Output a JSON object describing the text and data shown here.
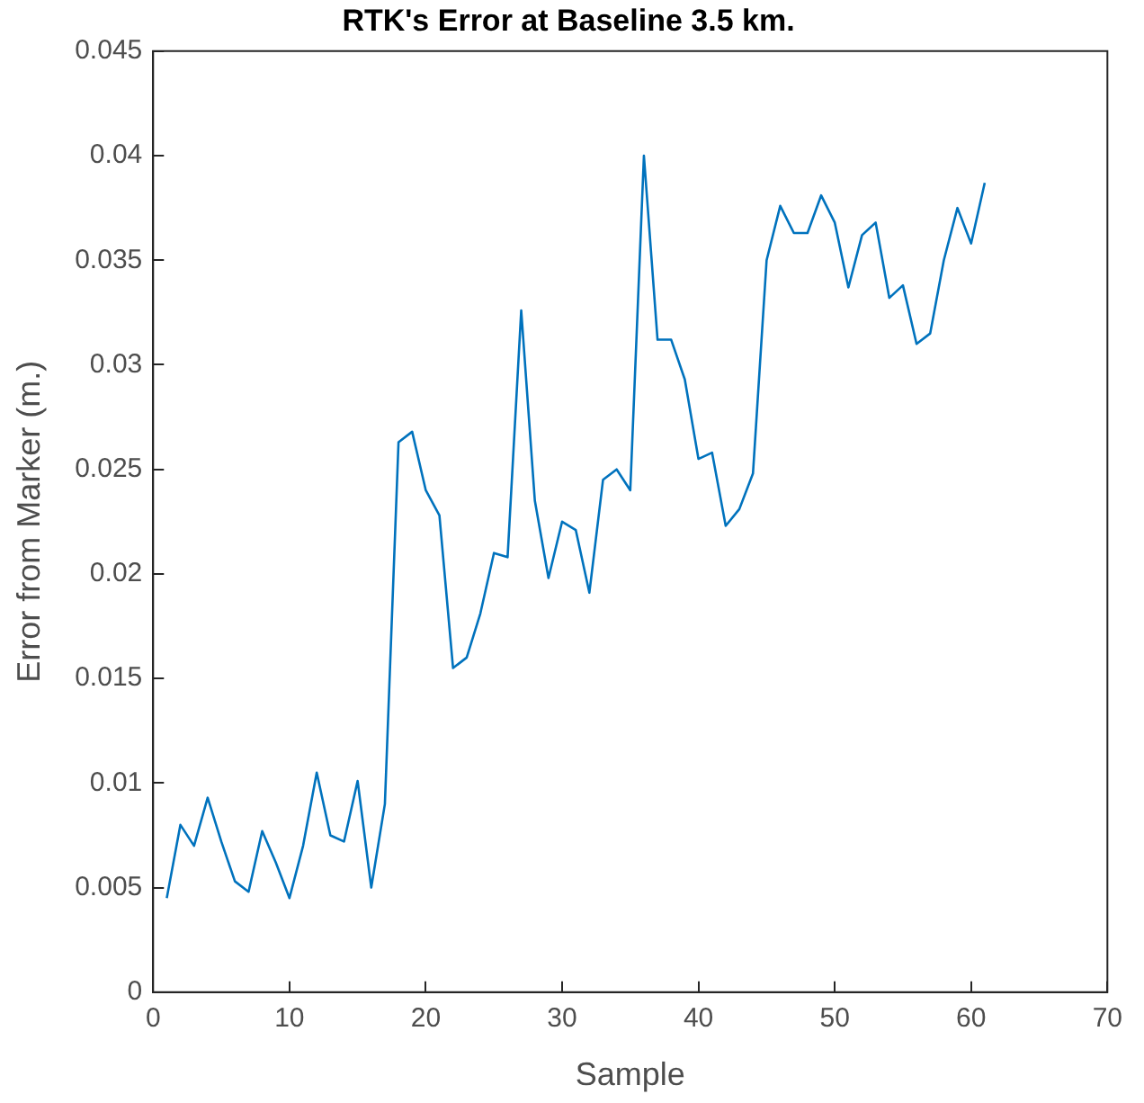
{
  "chart_data": {
    "type": "line",
    "title": "RTK's Error at Baseline 3.5 km.",
    "xlabel": "Sample",
    "ylabel": "Error from Marker (m.)",
    "x": [
      1,
      2,
      3,
      4,
      5,
      6,
      7,
      8,
      9,
      10,
      11,
      12,
      13,
      14,
      15,
      16,
      17,
      18,
      19,
      20,
      21,
      22,
      23,
      24,
      25,
      26,
      27,
      28,
      29,
      30,
      31,
      32,
      33,
      34,
      35,
      36,
      37,
      38,
      39,
      40,
      41,
      42,
      43,
      44,
      45,
      46,
      47,
      48,
      49,
      50,
      51,
      52,
      53,
      54,
      55,
      56,
      57,
      58,
      59,
      60,
      61
    ],
    "series": [
      {
        "color": "#0072bd",
        "values": [
          0.0045,
          0.008,
          0.007,
          0.0093,
          0.0072,
          0.0053,
          0.0048,
          0.0077,
          0.0062,
          0.0045,
          0.007,
          0.0105,
          0.0075,
          0.0072,
          0.0101,
          0.005,
          0.009,
          0.0263,
          0.0268,
          0.024,
          0.0228,
          0.0155,
          0.016,
          0.0181,
          0.021,
          0.0208,
          0.0326,
          0.0235,
          0.0198,
          0.0225,
          0.0221,
          0.0191,
          0.0245,
          0.025,
          0.024,
          0.04,
          0.0312,
          0.0312,
          0.0293,
          0.0255,
          0.0258,
          0.0223,
          0.0231,
          0.0248,
          0.035,
          0.0376,
          0.0363,
          0.0363,
          0.0381,
          0.0368,
          0.0337,
          0.0362,
          0.0368,
          0.0332,
          0.0338,
          0.031,
          0.0315,
          0.035,
          0.0375,
          0.0358,
          0.0387
        ]
      }
    ],
    "xlim": [
      0,
      70
    ],
    "xticks": [
      0,
      10,
      20,
      30,
      40,
      50,
      60,
      70
    ],
    "ylim": [
      0,
      0.045
    ],
    "yticks": [
      0,
      0.005,
      0.01,
      0.015,
      0.02,
      0.025,
      0.03,
      0.035,
      0.04,
      0.045
    ],
    "grid": false,
    "legend": false,
    "marker": "none",
    "line_style": "solid"
  }
}
